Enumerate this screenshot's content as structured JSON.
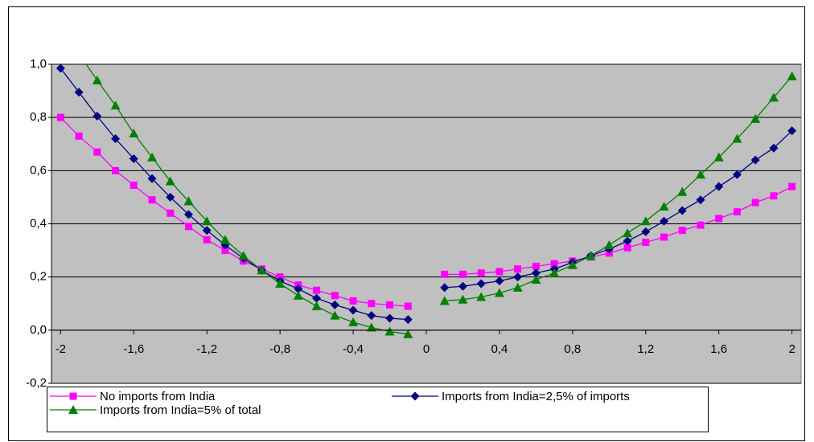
{
  "chart_data": {
    "type": "line",
    "x": [
      -2,
      -1.9,
      -1.8,
      -1.7,
      -1.6,
      -1.5,
      -1.4,
      -1.3,
      -1.2,
      -1.1,
      -1.0,
      -0.9,
      -0.8,
      -0.7,
      -0.6,
      -0.5,
      -0.4,
      -0.3,
      -0.2,
      -0.1,
      0,
      0.1,
      0.2,
      0.3,
      0.4,
      0.5,
      0.6,
      0.7,
      0.8,
      0.9,
      1.0,
      1.1,
      1.2,
      1.3,
      1.4,
      1.5,
      1.6,
      1.7,
      1.8,
      1.9,
      2.0
    ],
    "series": [
      {
        "name": "No imports from India",
        "color": "#ff00ff",
        "marker": "square",
        "values": [
          0.8,
          0.73,
          0.67,
          0.6,
          0.545,
          0.49,
          0.44,
          0.39,
          0.34,
          0.3,
          0.26,
          0.23,
          0.2,
          0.17,
          0.15,
          0.13,
          0.11,
          0.1,
          0.095,
          0.09,
          null,
          0.21,
          0.21,
          0.215,
          0.22,
          0.23,
          0.24,
          0.25,
          0.26,
          0.275,
          0.29,
          0.31,
          0.33,
          0.35,
          0.375,
          0.395,
          0.42,
          0.445,
          0.48,
          0.505,
          0.54
        ]
      },
      {
        "name": "Imports from India=2,5% of imports",
        "color": "#000080",
        "marker": "diamond",
        "values": [
          0.985,
          0.895,
          0.805,
          0.72,
          0.645,
          0.57,
          0.5,
          0.435,
          0.375,
          0.32,
          0.27,
          0.225,
          0.185,
          0.155,
          0.12,
          0.095,
          0.075,
          0.055,
          0.045,
          0.04,
          null,
          0.16,
          0.165,
          0.175,
          0.185,
          0.2,
          0.215,
          0.23,
          0.255,
          0.28,
          0.305,
          0.335,
          0.37,
          0.41,
          0.45,
          0.49,
          0.54,
          0.585,
          0.64,
          0.685,
          0.75
        ]
      },
      {
        "name": "Imports from India=5% of total",
        "color": "#008000",
        "marker": "triangle",
        "values": [
          1.14,
          1.04,
          0.94,
          0.845,
          0.74,
          0.65,
          0.56,
          0.485,
          0.41,
          0.34,
          0.28,
          0.225,
          0.175,
          0.13,
          0.09,
          0.055,
          0.03,
          0.01,
          -0.005,
          -0.015,
          null,
          0.11,
          0.115,
          0.125,
          0.14,
          0.16,
          0.19,
          0.215,
          0.245,
          0.28,
          0.32,
          0.365,
          0.41,
          0.465,
          0.52,
          0.585,
          0.65,
          0.72,
          0.795,
          0.875,
          0.955
        ]
      }
    ],
    "xlim": [
      -2.05,
      2.05
    ],
    "xticks": [
      -2,
      {
        "value": -1.6,
        "label": "-1,6"
      },
      {
        "value": -1.2,
        "label": "-1,2"
      },
      {
        "value": -0.8,
        "label": "-0,8"
      },
      {
        "value": -0.4,
        "label": "-0,4"
      },
      0,
      {
        "value": 0.4,
        "label": "0,4"
      },
      {
        "value": 0.8,
        "label": "0,8"
      },
      {
        "value": 1.2,
        "label": "1,2"
      },
      {
        "value": 1.6,
        "label": "1,6"
      },
      2
    ],
    "ylim": [
      -0.2,
      1.0
    ],
    "yticks": [
      {
        "value": -0.2,
        "label": "-0,2"
      },
      {
        "value": 0.0,
        "label": "0,0"
      },
      {
        "value": 0.2,
        "label": "0,2"
      },
      {
        "value": 0.4,
        "label": "0,4"
      },
      {
        "value": 0.6,
        "label": "0,6"
      },
      {
        "value": 0.8,
        "label": "0,8"
      },
      {
        "value": 1.0,
        "label": "1,0"
      }
    ],
    "grid": true,
    "legend": "bottom"
  }
}
